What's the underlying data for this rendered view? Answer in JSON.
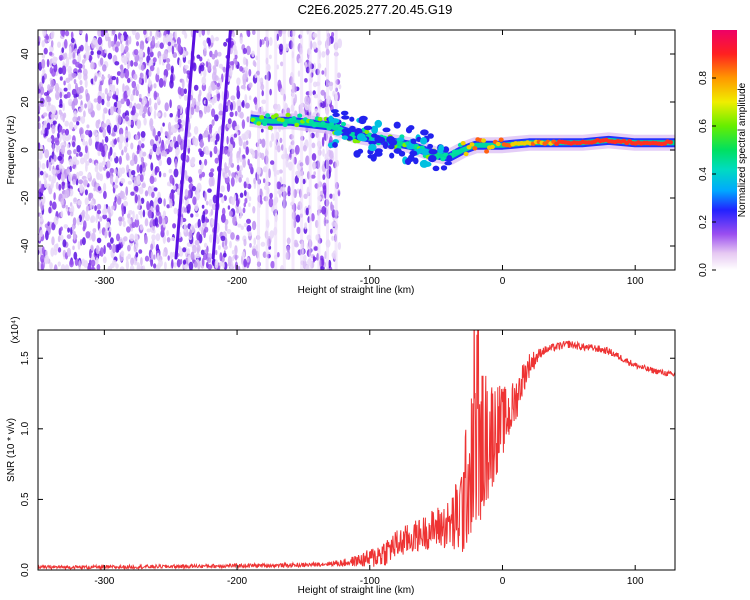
{
  "title": "C2E6.2025.277.20.45.G19",
  "chart_data": [
    {
      "type": "heatmap",
      "name": "spectrogram",
      "xlabel": "Height of straight line (km)",
      "ylabel": "Frequency (Hz)",
      "xlim": [
        -350,
        130
      ],
      "ylim": [
        -50,
        50
      ],
      "xticks": [
        -300,
        -200,
        -100,
        0,
        100
      ],
      "xtick_labels": [
        "-300",
        "-200",
        "-100",
        "0",
        "100"
      ],
      "yticks": [
        -40,
        -20,
        0,
        20,
        40
      ],
      "ytick_labels": [
        "-40",
        "-20",
        "0",
        "20",
        "40"
      ],
      "colorbar": {
        "label": "Normalized spectral amplitude",
        "range": [
          0,
          1
        ],
        "ticks": [
          0.0,
          0.2,
          0.4,
          0.6,
          0.8
        ],
        "tick_labels": [
          "0.0",
          "0.2",
          "0.4",
          "0.6",
          "0.8"
        ]
      },
      "dominant_frequency_track": {
        "x": [
          -190,
          -175,
          -160,
          -145,
          -130,
          -120,
          -110,
          -100,
          -90,
          -80,
          -70,
          -60,
          -50,
          -40,
          -30,
          -20,
          -10,
          0,
          20,
          40,
          60,
          80,
          100,
          130
        ],
        "y": [
          13,
          12,
          12,
          11,
          10,
          8,
          6,
          5,
          4,
          3,
          2,
          0,
          -2,
          -3,
          0,
          2,
          2,
          2,
          3,
          3,
          3,
          4,
          3,
          3
        ]
      },
      "noise_streaks": [
        {
          "x": [
            -246,
            -232
          ],
          "y": [
            -45,
            50
          ]
        },
        {
          "x": [
            -218,
            -205
          ],
          "y": [
            -45,
            50
          ]
        }
      ]
    },
    {
      "type": "line",
      "name": "snr",
      "xlabel": "Height of straight line (km)",
      "ylabel": "SNR (10 * v/v)",
      "scale_label": "(x10⁴)",
      "xlim": [
        -350,
        130
      ],
      "ylim": [
        0,
        1.7
      ],
      "xticks": [
        -300,
        -200,
        -100,
        0,
        100
      ],
      "xtick_labels": [
        "-300",
        "-200",
        "-100",
        "0",
        "100"
      ],
      "yticks": [
        0.0,
        0.5,
        1.0,
        1.5
      ],
      "ytick_labels": [
        "0.0",
        "0.5",
        "1.0",
        "1.5"
      ],
      "color": "#ee3333",
      "envelope": {
        "x": [
          -350,
          -300,
          -250,
          -200,
          -150,
          -120,
          -100,
          -90,
          -80,
          -70,
          -60,
          -50,
          -40,
          -35,
          -30,
          -25,
          -20,
          -15,
          -10,
          -5,
          0,
          5,
          10,
          15,
          20,
          30,
          40,
          50,
          60,
          70,
          80,
          90,
          100,
          110,
          120,
          130
        ],
        "y": [
          0.02,
          0.02,
          0.025,
          0.03,
          0.035,
          0.05,
          0.08,
          0.12,
          0.18,
          0.22,
          0.26,
          0.3,
          0.32,
          0.35,
          0.45,
          0.7,
          0.85,
          0.9,
          0.95,
          1.0,
          1.05,
          1.1,
          1.2,
          1.35,
          1.45,
          1.55,
          1.58,
          1.6,
          1.58,
          1.57,
          1.55,
          1.5,
          1.45,
          1.42,
          1.4,
          1.38
        ]
      },
      "noise_amplitude": {
        "x": [
          -350,
          -130,
          -110,
          -90,
          -60,
          -40,
          -25,
          -15,
          0,
          15,
          30,
          130
        ],
        "y": [
          0.012,
          0.015,
          0.04,
          0.1,
          0.12,
          0.18,
          0.5,
          0.55,
          0.25,
          0.12,
          0.03,
          0.02
        ]
      }
    }
  ]
}
